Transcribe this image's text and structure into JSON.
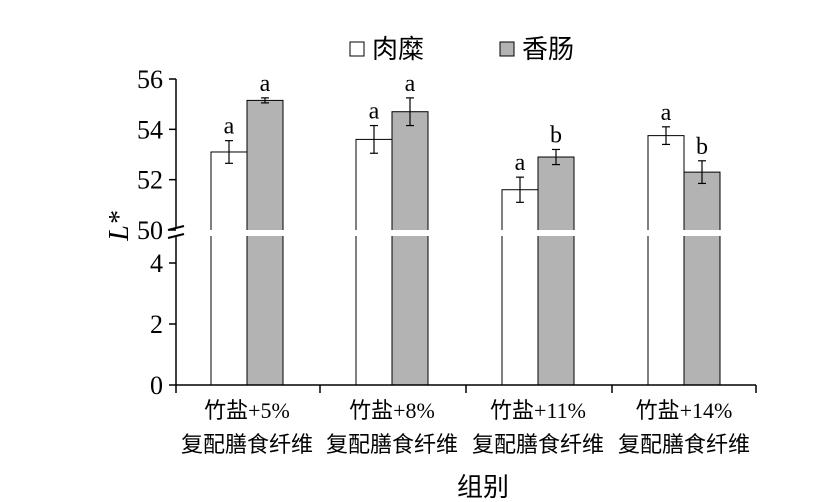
{
  "chart_data": {
    "type": "bar",
    "title": "",
    "xlabel": "组别",
    "ylabel": "L*",
    "categories": [
      [
        "竹盐+5%",
        "复配膳食纤维"
      ],
      [
        "竹盐+8%",
        "复配膳食纤维"
      ],
      [
        "竹盐+11%",
        "复配膳食纤维"
      ],
      [
        "竹盐+14%",
        "复配膳食纤维"
      ]
    ],
    "series": [
      {
        "name": "肉糜",
        "color": "#ffffff",
        "values": [
          53.1,
          53.6,
          51.6,
          53.75
        ],
        "errors": [
          0.45,
          0.55,
          0.5,
          0.35
        ],
        "significance": [
          "a",
          "a",
          "a",
          "a"
        ]
      },
      {
        "name": "香肠",
        "color": "#b3b3b3",
        "values": [
          55.15,
          54.7,
          52.9,
          52.3
        ],
        "errors": [
          0.1,
          0.55,
          0.3,
          0.45
        ],
        "significance": [
          "a",
          "a",
          "b",
          "b"
        ]
      }
    ],
    "axis_break": {
      "lower": [
        0,
        5
      ],
      "upper": [
        50,
        56
      ]
    },
    "yticks_lower": [
      0,
      2,
      4
    ],
    "yticks_upper": [
      50,
      52,
      54,
      56
    ],
    "legend_position": "top-center",
    "grid": false
  }
}
